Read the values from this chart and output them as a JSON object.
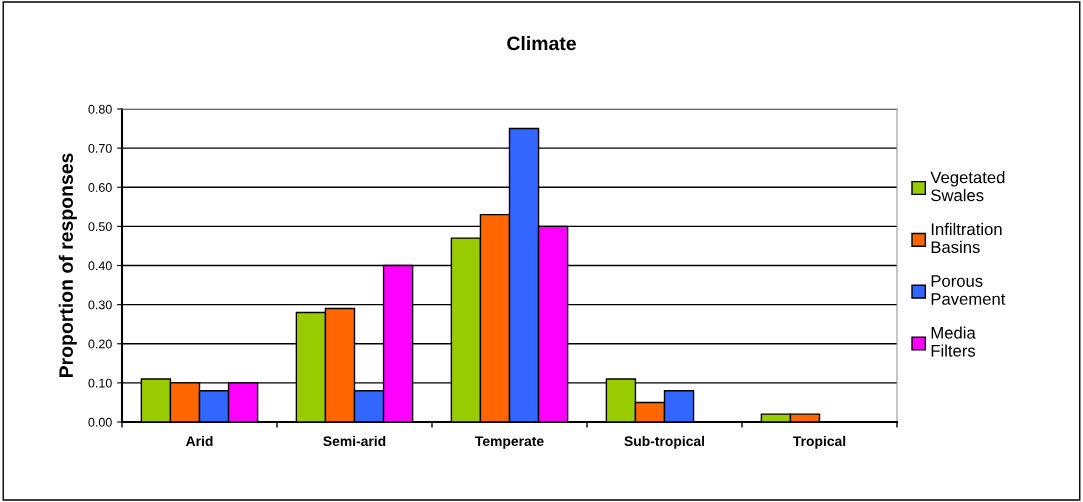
{
  "chart_data": {
    "type": "bar",
    "title": "Climate",
    "ylabel": "Proportion of responses",
    "categories": [
      "Arid",
      "Semi-arid",
      "Temperate",
      "Sub-tropical",
      "Tropical"
    ],
    "series": [
      {
        "name": "Vegetated Swales",
        "color": "#99cc00",
        "values": [
          0.11,
          0.28,
          0.47,
          0.11,
          0.02
        ]
      },
      {
        "name": "Infiltration Basins",
        "color": "#ff6600",
        "values": [
          0.1,
          0.29,
          0.53,
          0.05,
          0.02
        ]
      },
      {
        "name": "Porous Pavement",
        "color": "#3366ff",
        "values": [
          0.08,
          0.08,
          0.75,
          0.08,
          null
        ]
      },
      {
        "name": "Media Filters",
        "color": "#ff00ff",
        "values": [
          0.1,
          0.4,
          0.5,
          null,
          null
        ]
      }
    ],
    "ylim": [
      0,
      0.8
    ],
    "yticks": [
      {
        "value": 0,
        "label": "0.00"
      },
      {
        "value": 0.1,
        "label": "0.10"
      },
      {
        "value": 0.2,
        "label": "0.20"
      },
      {
        "value": 0.3,
        "label": "0.30"
      },
      {
        "value": 0.4,
        "label": "0.40"
      },
      {
        "value": 0.5,
        "label": "0.50"
      },
      {
        "value": 0.6,
        "label": "0.60"
      },
      {
        "value": 0.7,
        "label": "0.70"
      },
      {
        "value": 0.8,
        "label": "0.80"
      }
    ],
    "grid": "y",
    "legend": "right"
  }
}
